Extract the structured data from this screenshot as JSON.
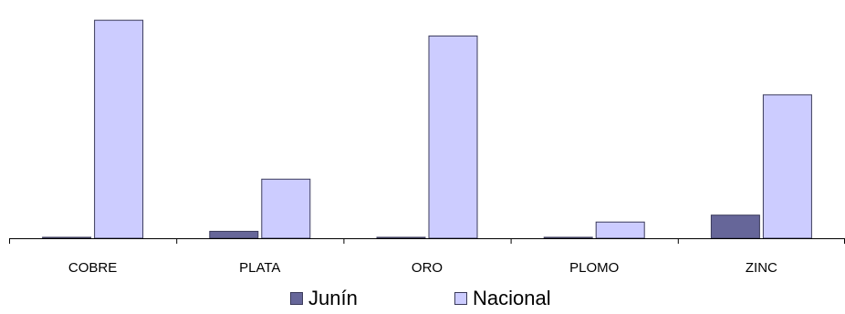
{
  "chart_data": {
    "type": "bar",
    "categories": [
      "COBRE",
      "PLATA",
      "ORO",
      "PLOMO",
      "ZINC"
    ],
    "series": [
      {
        "name": "Junín",
        "values": [
          0.4,
          2.9,
          0.4,
          0.4,
          9.7
        ]
      },
      {
        "name": "Nacional",
        "values": [
          91.5,
          24.8,
          84.9,
          6.8,
          60.2
        ]
      }
    ],
    "ylim": [
      0,
      100
    ],
    "grid": false,
    "legend_position": "bottom",
    "colors": {
      "Junín": "#666699",
      "Nacional": "#ccccff"
    }
  }
}
